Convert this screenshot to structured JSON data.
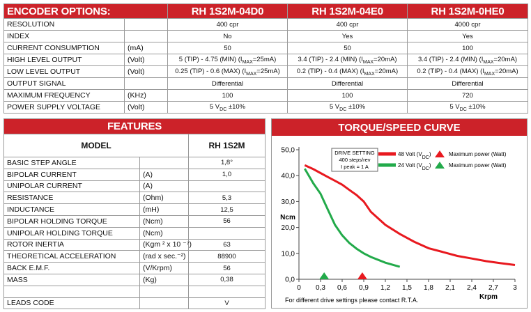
{
  "encoder_options": {
    "title": "ENCODER OPTIONS:",
    "models": [
      "RH 1S2M-04D0",
      "RH 1S2M-04E0",
      "RH 1S2M-0HE0"
    ],
    "rows": [
      {
        "label": "RESOLUTION",
        "values": [
          "400 cpr",
          "400 cpr",
          "4000 cpr"
        ]
      },
      {
        "label": "INDEX",
        "values": [
          "No",
          "Yes",
          "Yes"
        ]
      },
      {
        "label": "CURRENT CONSUMPTION",
        "unit": "(mA)",
        "values": [
          "50",
          "50",
          "100"
        ]
      },
      {
        "label": "HIGH LEVEL OUTPUT",
        "unit": "(Volt)",
        "values": [
          [
            "5 (TIP) - 4.75 (MIN) (I",
            {
              "sub": "MAX"
            },
            "=25mA)"
          ],
          [
            "3.4 (TIP) - 2.4 (MIN) (I",
            {
              "sub": "MAX"
            },
            "=20mA)"
          ],
          [
            "3.4 (TIP) - 2.4 (MIN) (I",
            {
              "sub": "MAX"
            },
            "=20mA)"
          ]
        ]
      },
      {
        "label": "LOW LEVEL OUTPUT",
        "unit": "(Volt)",
        "values": [
          [
            "0.25 (TIP) - 0.6 (MAX) (I",
            {
              "sub": "MAX"
            },
            "=25mA)"
          ],
          [
            "0.2 (TIP) - 0.4 (MAX) (I",
            {
              "sub": "MAX"
            },
            "=20mA)"
          ],
          [
            "0.2 (TIP) - 0.4 (MAX) (I",
            {
              "sub": "MAX"
            },
            "=20mA)"
          ]
        ]
      },
      {
        "label": "OUTPUT SIGNAL",
        "values": [
          "Differential",
          "Differential",
          "Differential"
        ]
      },
      {
        "label": "MAXIMUM FREQUENCY",
        "unit": "(KHz)",
        "values": [
          "100",
          "100",
          "720"
        ]
      },
      {
        "label": "POWER SUPPLY VOLTAGE",
        "unit": "(Volt)",
        "values": [
          [
            "5 V",
            {
              "sub": "DC"
            },
            " ±10%"
          ],
          [
            "5 V",
            {
              "sub": "DC"
            },
            " ±10%"
          ],
          [
            "5 V",
            {
              "sub": "DC"
            },
            " ±10%"
          ]
        ]
      }
    ]
  },
  "features": {
    "title": "FEATURES",
    "model_label": "MODEL",
    "model": "RH 1S2M",
    "rows": [
      {
        "label": "BASIC STEP ANGLE",
        "value": "1,8°"
      },
      {
        "label": "BIPOLAR CURRENT",
        "unit": "(A)",
        "value": "1,0"
      },
      {
        "label": "UNIPOLAR CURRENT",
        "unit": "(A)"
      },
      {
        "label": "RESISTANCE",
        "unit": "(Ohm)",
        "value": "5,3"
      },
      {
        "label": "INDUCTANCE",
        "unit": "(mH)",
        "value": "12,5"
      },
      {
        "label": "BIPOLAR HOLDING TORQUE",
        "unit": "(Ncm)",
        "value": "56"
      },
      {
        "label": "UNIPOLAR HOLDING TORQUE",
        "unit": "(Ncm)"
      },
      {
        "label": "ROTOR INERTIA",
        "unit": "(Kgm ² x 10 ⁻⁷)",
        "value": "63"
      },
      {
        "label": "THEORETICAL ACCELERATION",
        "unit": "(rad x sec.⁻²)",
        "value": "88900"
      },
      {
        "label": "BACK E.M.F.",
        "unit": "(V/Krpm)",
        "value": "56"
      },
      {
        "label": "MASS",
        "unit": "(Kg)",
        "value": "0,38"
      },
      {
        "label": "LEADS CODE",
        "value": "V"
      }
    ]
  },
  "chart_data": {
    "type": "line",
    "title": "TORQUE/SPEED CURVE",
    "y_label": "Ncm",
    "x_label": "Krpm",
    "note": "For different drive settings please contact R.T.A.",
    "drive_setting": [
      "DRIVE SETTING",
      "400 steps/rev",
      "I peak = 1 A"
    ],
    "max_power_label": "Maximum power (Watt)",
    "xlim": [
      0,
      3
    ],
    "ylim": [
      0,
      50
    ],
    "grid": false,
    "xticks": [
      0,
      {
        "value": 0.3,
        "label": "0,3"
      },
      {
        "value": 0.6,
        "label": "0,6"
      },
      {
        "value": 0.9,
        "label": "0,9"
      },
      {
        "value": 1.2,
        "label": "1,2"
      },
      {
        "value": 1.5,
        "label": "1,5"
      },
      {
        "value": 1.8,
        "label": "1,8"
      },
      {
        "value": 2.1,
        "label": "2,1"
      },
      {
        "value": 2.4,
        "label": "2,4"
      },
      {
        "value": 2.7,
        "label": "2,7"
      },
      3
    ],
    "yticks": [
      {
        "value": 0,
        "label": "0,0"
      },
      {
        "value": 10,
        "label": "10,0"
      },
      {
        "value": 20,
        "label": "20,0"
      },
      {
        "value": 30,
        "label": "30,0"
      },
      {
        "value": 40,
        "label": "40,0"
      },
      {
        "value": 50,
        "label": "50,0"
      }
    ],
    "x": [
      0.08,
      0.2,
      0.3,
      0.4,
      0.5,
      0.6,
      0.7,
      0.8,
      0.9,
      1.0,
      1.2,
      1.4,
      1.6,
      1.8,
      2.0,
      2.2,
      2.4,
      2.6,
      2.8,
      3.0
    ],
    "series": [
      {
        "name": [
          "48 Volt (V",
          {
            "sub": "DC"
          },
          ")"
        ],
        "color": "#e8191f",
        "max_power_speed": 0.88,
        "values": [
          44,
          42.5,
          41,
          39.5,
          38,
          36.5,
          34.5,
          32.5,
          30,
          26,
          21,
          17.5,
          14.5,
          12,
          10.5,
          9,
          8,
          7,
          6.2,
          5.5
        ]
      },
      {
        "name": [
          "24 Volt (V",
          {
            "sub": "DC"
          },
          ")"
        ],
        "color": "#22aa4a",
        "max_power_speed": 0.35,
        "values": [
          42.7,
          37,
          33,
          27,
          21,
          17,
          14,
          11.8,
          10,
          8.6,
          6.4,
          4.8,
          null,
          null,
          null,
          null,
          null,
          null,
          null,
          null
        ]
      }
    ]
  }
}
